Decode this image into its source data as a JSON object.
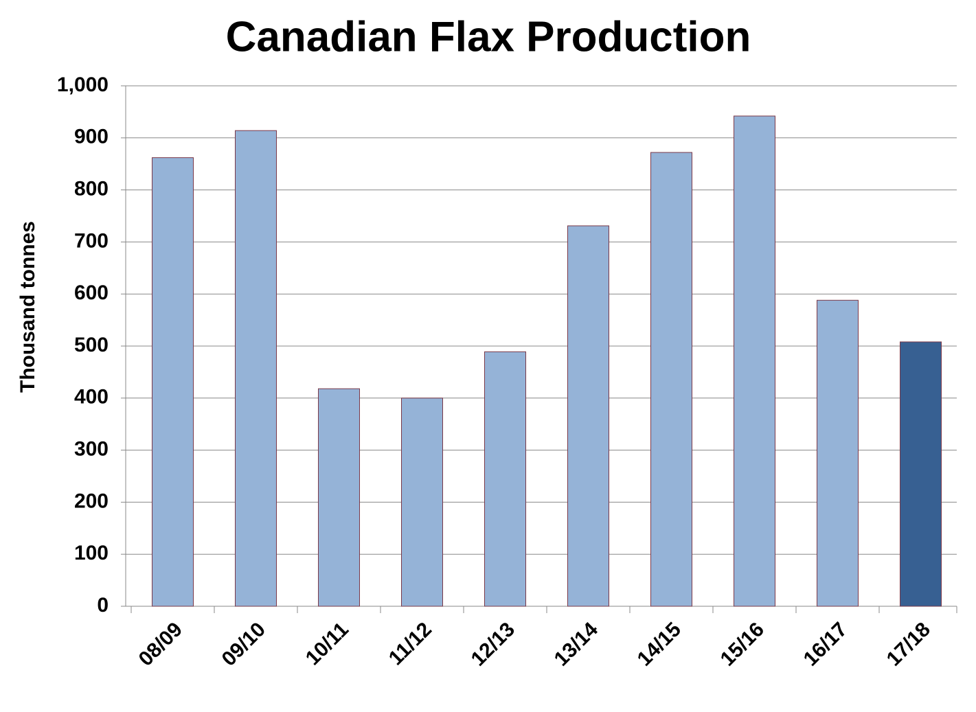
{
  "chart_data": {
    "type": "bar",
    "title": "Canadian Flax Production",
    "y_label": "Thousand tonnes",
    "categories": [
      "08/09",
      "09/10",
      "10/11",
      "11/12",
      "12/13",
      "13/14",
      "14/15",
      "15/16",
      "16/17",
      "17/18"
    ],
    "values": [
      862,
      914,
      418,
      400,
      489,
      731,
      872,
      942,
      588,
      508
    ],
    "colors": [
      "#95b3d7",
      "#95b3d7",
      "#95b3d7",
      "#95b3d7",
      "#95b3d7",
      "#95b3d7",
      "#95b3d7",
      "#95b3d7",
      "#95b3d7",
      "#376092"
    ],
    "ylim": [
      0,
      1000
    ],
    "yticks": [
      0,
      100,
      200,
      300,
      400,
      500,
      600,
      700,
      800,
      900,
      {
        "value": 1000,
        "label": "1,000"
      }
    ],
    "grid": true
  }
}
